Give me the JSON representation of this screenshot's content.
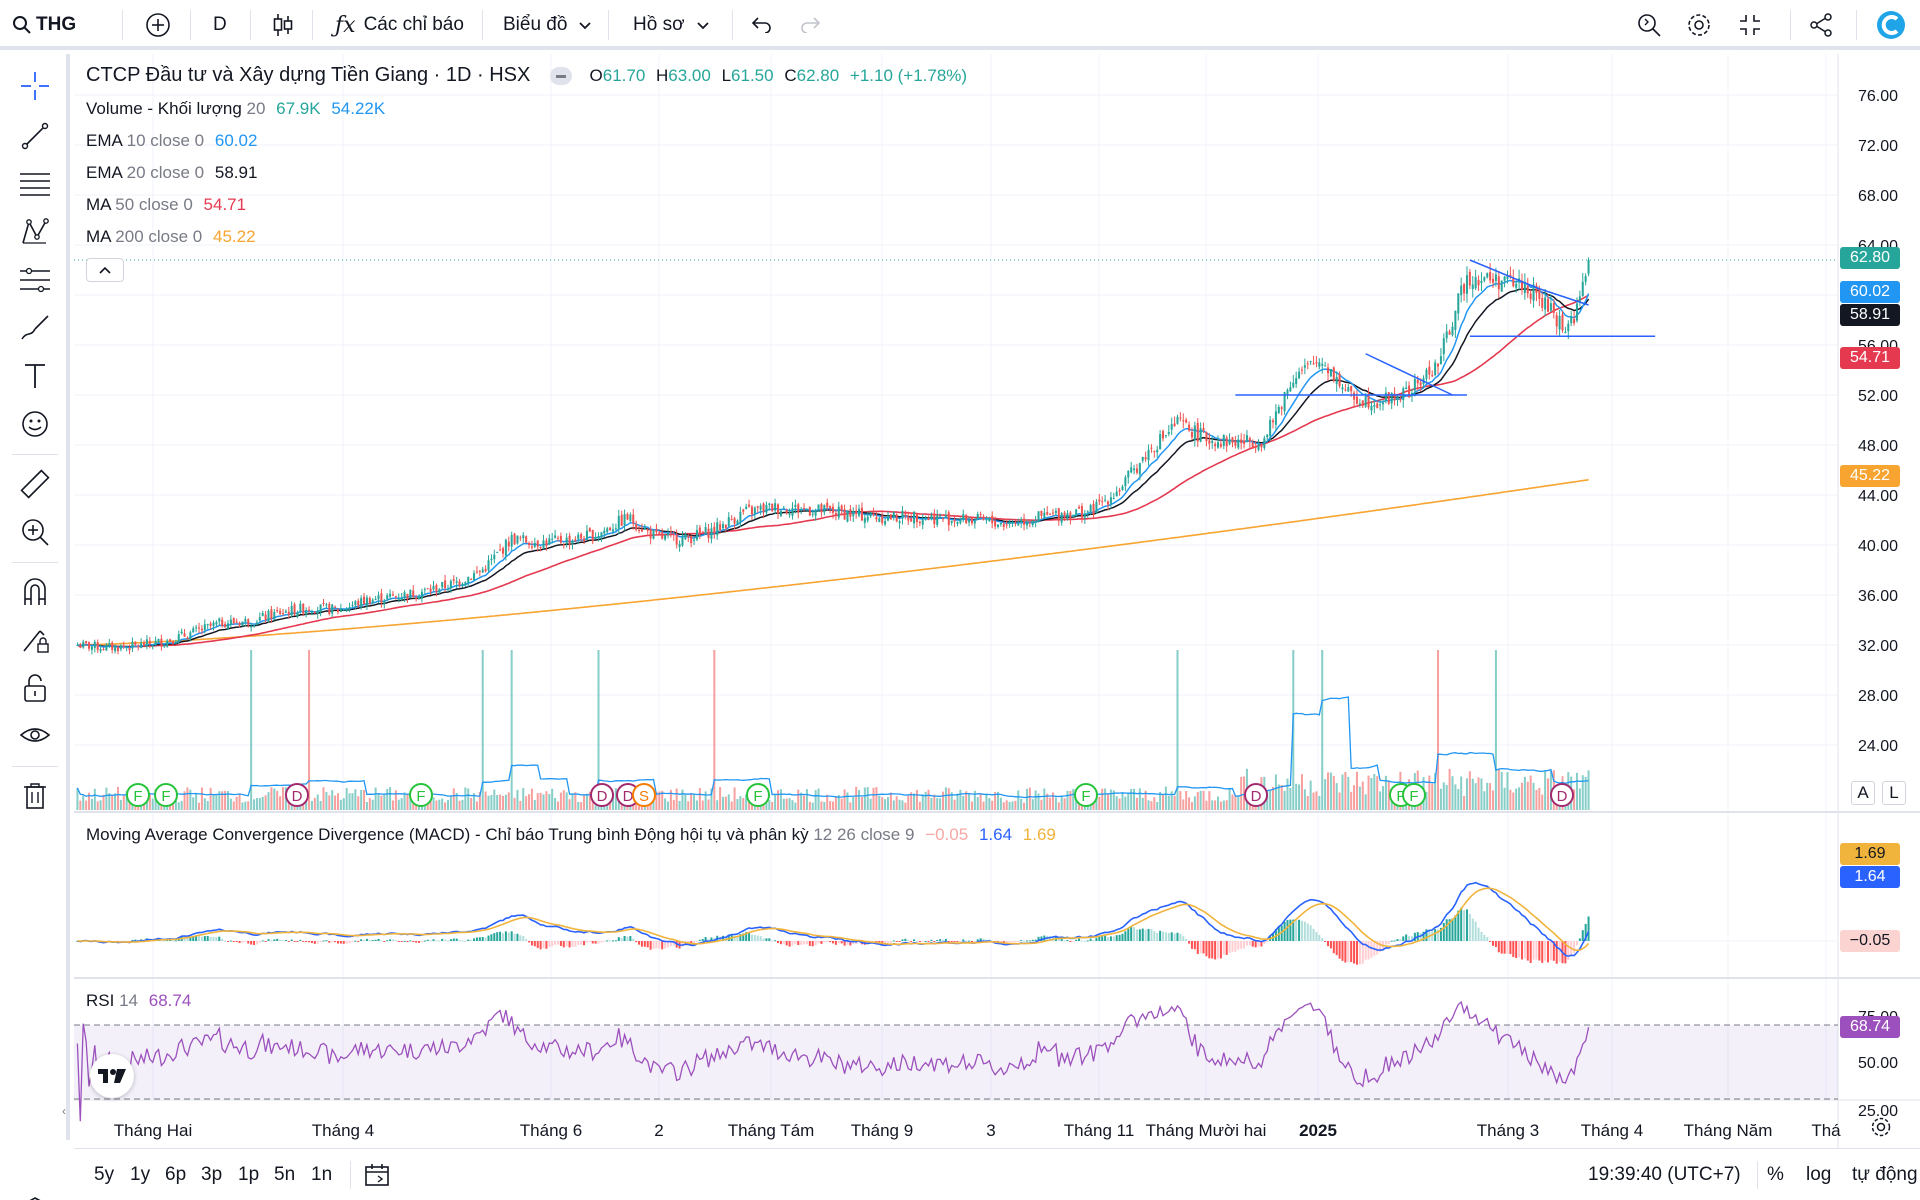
{
  "toolbar": {
    "symbol": "THG",
    "interval": "D",
    "indicators_label": "Các chỉ báo",
    "chart_type_label": "Biểu đồ",
    "profile_label": "Hồ sơ"
  },
  "legend": {
    "title": "CTCP Đầu tư và Xây dựng Tiền Giang · 1D · HSX",
    "o_label": "O",
    "o_value": "61.70",
    "h_label": "H",
    "h_value": "63.00",
    "l_label": "L",
    "l_value": "61.50",
    "c_label": "C",
    "c_value": "62.80",
    "change": "+1.10 (+1.78%)",
    "volume_name": "Volume - Khối lượng",
    "volume_param": "20",
    "volume_v1": "67.9K",
    "volume_v2": "54.22K",
    "ema10_name": "EMA",
    "ema10_param": "10 close 0",
    "ema10_value": "60.02",
    "ema20_name": "EMA",
    "ema20_param": "20 close 0",
    "ema20_value": "58.91",
    "ma50_name": "MA",
    "ma50_param": "50 close 0",
    "ma50_value": "54.71",
    "ma200_name": "MA",
    "ma200_param": "200 close 0",
    "ma200_value": "45.22"
  },
  "macd_legend": {
    "name": "Moving Average Convergence Divergence (MACD) - Chỉ báo Trung bình Động hội tụ và phân kỳ",
    "params": "12 26 close 9",
    "hist": "−0.05",
    "macd": "1.64",
    "signal": "1.69"
  },
  "rsi_legend": {
    "name": "RSI",
    "param": "14",
    "value": "68.74"
  },
  "price_tags": {
    "last": "62.80",
    "ema10": "60.02",
    "ema20": "58.91",
    "ma50": "54.71",
    "ma200": "45.22",
    "macd_signal": "1.69",
    "macd": "1.64",
    "macd_hist": "−0.05",
    "rsi": "68.74"
  },
  "colors": {
    "up": "#26a69a",
    "down": "#ef5350",
    "ema10": "#2196f3",
    "ema20": "#131722",
    "ma50": "#e53950",
    "ma200": "#f7a431",
    "macd": "#2962ff",
    "signal": "#f0b43c",
    "rsi": "#9c50bd",
    "trendline": "#2962ff"
  },
  "bottom": {
    "ranges": [
      "5y",
      "1y",
      "6p",
      "3p",
      "1p",
      "5n",
      "1n"
    ],
    "clock": "19:39:40 (UTC+7)",
    "percent": "%",
    "log": "log",
    "auto": "tự động"
  },
  "scale_buttons": {
    "a": "A",
    "l": "L"
  },
  "chart_data": {
    "type": "candlestick",
    "price_axis": {
      "ticks": [
        "76.00",
        "72.00",
        "68.00",
        "64.00",
        "60.00",
        "56.00",
        "52.00",
        "48.00",
        "44.00",
        "40.00",
        "36.00",
        "32.00",
        "28.00",
        "24.00"
      ],
      "ylim": [
        22,
        78
      ]
    },
    "rsi_axis": {
      "ticks": [
        "75.00",
        "50.00",
        "25.00"
      ]
    },
    "x_ticks": [
      "Tháng Hai",
      "Tháng 4",
      "Tháng 6",
      "2",
      "Tháng Tám",
      "Tháng 9",
      "3",
      "Tháng 11",
      "Tháng Mười hai",
      "2025",
      "Tháng 3",
      "Tháng 4",
      "Tháng Năm",
      "Thá"
    ],
    "close_path": [
      [
        0,
        32.0
      ],
      [
        10,
        31.8
      ],
      [
        20,
        31.9
      ],
      [
        30,
        32.3
      ],
      [
        40,
        33.0
      ],
      [
        50,
        33.8
      ],
      [
        60,
        33.9
      ],
      [
        70,
        34.6
      ],
      [
        80,
        35.0
      ],
      [
        90,
        34.8
      ],
      [
        100,
        35.6
      ],
      [
        110,
        35.9
      ],
      [
        120,
        36.3
      ],
      [
        130,
        36.9
      ],
      [
        140,
        38.0
      ],
      [
        150,
        40.5
      ],
      [
        160,
        40.2
      ],
      [
        170,
        40.4
      ],
      [
        180,
        40.9
      ],
      [
        190,
        42.2
      ],
      [
        200,
        40.6
      ],
      [
        210,
        40.5
      ],
      [
        220,
        41.2
      ],
      [
        230,
        42.6
      ],
      [
        240,
        43.0
      ],
      [
        250,
        42.9
      ],
      [
        260,
        42.7
      ],
      [
        270,
        42.4
      ],
      [
        280,
        42.2
      ],
      [
        290,
        42.3
      ],
      [
        300,
        42.1
      ],
      [
        310,
        42.0
      ],
      [
        320,
        41.7
      ],
      [
        330,
        42.1
      ],
      [
        340,
        42.5
      ],
      [
        350,
        42.7
      ],
      [
        360,
        44.5
      ],
      [
        370,
        47.5
      ],
      [
        380,
        49.8
      ],
      [
        390,
        48.5
      ],
      [
        400,
        48.2
      ],
      [
        410,
        48.4
      ],
      [
        420,
        53.5
      ],
      [
        430,
        54.8
      ],
      [
        440,
        51.8
      ],
      [
        450,
        51.5
      ],
      [
        460,
        52.2
      ],
      [
        470,
        54.5
      ],
      [
        480,
        61.5
      ],
      [
        490,
        61.2
      ],
      [
        500,
        60.8
      ],
      [
        510,
        58.5
      ],
      [
        514,
        57.2
      ],
      [
        518,
        58.8
      ],
      [
        522,
        62.8
      ]
    ],
    "volume_spikes": [
      [
        60,
        1.5
      ],
      [
        80,
        1.9
      ],
      [
        140,
        2.0
      ],
      [
        150,
        2.1
      ],
      [
        180,
        2.1
      ],
      [
        220,
        2.1
      ],
      [
        380,
        1.1
      ],
      [
        420,
        10.0
      ],
      [
        430,
        2.2
      ],
      [
        470,
        4.0
      ],
      [
        490,
        1.8
      ]
    ],
    "last": {
      "open": 61.7,
      "high": 63.0,
      "low": 61.5,
      "close": 62.8
    }
  }
}
